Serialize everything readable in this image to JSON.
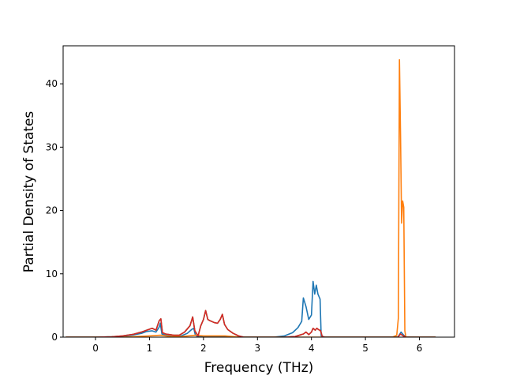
{
  "chart_data": {
    "type": "line",
    "title": "",
    "xlabel": "Frequency (THz)",
    "ylabel": "Partial Density of States",
    "xlim": [
      -0.6,
      6.65
    ],
    "ylim": [
      0,
      46
    ],
    "xticks": [
      0,
      1,
      2,
      3,
      4,
      5,
      6
    ],
    "yticks": [
      0,
      10,
      20,
      30,
      40
    ],
    "grid": false,
    "legend": "none",
    "series": [
      {
        "color": "#1f77b4",
        "points": [
          [
            -0.55,
            0
          ],
          [
            0.0,
            0.0
          ],
          [
            0.3,
            0.05
          ],
          [
            0.5,
            0.15
          ],
          [
            0.7,
            0.35
          ],
          [
            0.85,
            0.6
          ],
          [
            0.95,
            0.9
          ],
          [
            1.05,
            1.0
          ],
          [
            1.12,
            0.8
          ],
          [
            1.18,
            1.6
          ],
          [
            1.2,
            2.2
          ],
          [
            1.23,
            0.5
          ],
          [
            1.3,
            0.3
          ],
          [
            1.4,
            0.15
          ],
          [
            1.5,
            0.05
          ],
          [
            1.6,
            0.25
          ],
          [
            1.7,
            0.6
          ],
          [
            1.78,
            1.2
          ],
          [
            1.82,
            1.4
          ],
          [
            1.85,
            0.3
          ],
          [
            1.9,
            0.05
          ],
          [
            2.0,
            0.1
          ],
          [
            2.2,
            0.1
          ],
          [
            2.5,
            0.05
          ],
          [
            2.7,
            0.0
          ],
          [
            3.3,
            0.0
          ],
          [
            3.5,
            0.2
          ],
          [
            3.65,
            0.7
          ],
          [
            3.75,
            1.5
          ],
          [
            3.82,
            2.5
          ],
          [
            3.85,
            6.2
          ],
          [
            3.9,
            4.8
          ],
          [
            3.95,
            2.8
          ],
          [
            4.0,
            3.5
          ],
          [
            4.03,
            8.8
          ],
          [
            4.06,
            6.8
          ],
          [
            4.09,
            8.2
          ],
          [
            4.12,
            6.8
          ],
          [
            4.16,
            6.0
          ],
          [
            4.18,
            0.2
          ],
          [
            4.25,
            0.0
          ],
          [
            5.6,
            0.0
          ],
          [
            5.63,
            0.4
          ],
          [
            5.66,
            0.8
          ],
          [
            5.7,
            0.4
          ],
          [
            5.75,
            0.0
          ],
          [
            6.3,
            0.0
          ]
        ]
      },
      {
        "color": "#ff7f0e",
        "points": [
          [
            -0.55,
            0
          ],
          [
            0.5,
            0.0
          ],
          [
            1.0,
            0.2
          ],
          [
            1.2,
            0.3
          ],
          [
            1.4,
            0.1
          ],
          [
            1.6,
            0.1
          ],
          [
            1.85,
            0.3
          ],
          [
            2.0,
            0.2
          ],
          [
            2.4,
            0.2
          ],
          [
            2.6,
            0.05
          ],
          [
            2.8,
            0.0
          ],
          [
            5.5,
            0.0
          ],
          [
            5.58,
            0.3
          ],
          [
            5.61,
            3.0
          ],
          [
            5.63,
            43.8
          ],
          [
            5.65,
            32.0
          ],
          [
            5.67,
            18.0
          ],
          [
            5.69,
            21.5
          ],
          [
            5.71,
            20.5
          ],
          [
            5.73,
            1.0
          ],
          [
            5.75,
            0.0
          ],
          [
            6.3,
            0.0
          ]
        ]
      },
      {
        "color": "#2ca02c",
        "points": [
          [
            -0.55,
            0
          ],
          [
            0.0,
            0.0
          ],
          [
            0.3,
            0.05
          ],
          [
            0.5,
            0.2
          ],
          [
            0.7,
            0.45
          ],
          [
            0.85,
            0.8
          ],
          [
            0.95,
            1.1
          ],
          [
            1.05,
            1.4
          ],
          [
            1.12,
            1.1
          ],
          [
            1.18,
            2.6
          ],
          [
            1.21,
            2.9
          ],
          [
            1.24,
            0.7
          ],
          [
            1.3,
            0.5
          ],
          [
            1.45,
            0.3
          ],
          [
            1.55,
            0.3
          ],
          [
            1.65,
            0.8
          ],
          [
            1.75,
            1.8
          ],
          [
            1.8,
            3.2
          ],
          [
            1.84,
            1.0
          ],
          [
            1.9,
            0.2
          ],
          [
            1.95,
            1.8
          ],
          [
            2.0,
            2.8
          ],
          [
            2.04,
            4.2
          ],
          [
            2.08,
            2.8
          ],
          [
            2.12,
            2.6
          ],
          [
            2.2,
            2.3
          ],
          [
            2.26,
            2.2
          ],
          [
            2.31,
            2.8
          ],
          [
            2.35,
            3.6
          ],
          [
            2.39,
            2.0
          ],
          [
            2.45,
            1.2
          ],
          [
            2.55,
            0.6
          ],
          [
            2.65,
            0.2
          ],
          [
            2.75,
            0.0
          ],
          [
            3.5,
            0.0
          ],
          [
            3.7,
            0.1
          ],
          [
            3.85,
            0.5
          ],
          [
            3.9,
            0.8
          ],
          [
            3.95,
            0.4
          ],
          [
            4.0,
            0.8
          ],
          [
            4.03,
            1.4
          ],
          [
            4.07,
            1.1
          ],
          [
            4.1,
            1.4
          ],
          [
            4.13,
            1.2
          ],
          [
            4.17,
            1.0
          ],
          [
            4.2,
            0.1
          ],
          [
            4.25,
            0.0
          ],
          [
            5.6,
            0.0
          ],
          [
            5.65,
            0.5
          ],
          [
            5.7,
            0.2
          ],
          [
            5.75,
            0.0
          ],
          [
            6.3,
            0.0
          ]
        ]
      },
      {
        "color": "#d62728",
        "points": [
          [
            -0.55,
            0
          ],
          [
            0.0,
            0.0
          ],
          [
            0.3,
            0.05
          ],
          [
            0.5,
            0.2
          ],
          [
            0.7,
            0.45
          ],
          [
            0.85,
            0.8
          ],
          [
            0.95,
            1.1
          ],
          [
            1.05,
            1.4
          ],
          [
            1.12,
            1.1
          ],
          [
            1.18,
            2.6
          ],
          [
            1.21,
            2.9
          ],
          [
            1.24,
            0.7
          ],
          [
            1.3,
            0.5
          ],
          [
            1.45,
            0.3
          ],
          [
            1.55,
            0.3
          ],
          [
            1.65,
            0.8
          ],
          [
            1.75,
            1.8
          ],
          [
            1.8,
            3.2
          ],
          [
            1.84,
            1.0
          ],
          [
            1.9,
            0.2
          ],
          [
            1.95,
            1.8
          ],
          [
            2.0,
            2.8
          ],
          [
            2.04,
            4.2
          ],
          [
            2.08,
            2.8
          ],
          [
            2.12,
            2.6
          ],
          [
            2.2,
            2.3
          ],
          [
            2.26,
            2.2
          ],
          [
            2.31,
            2.8
          ],
          [
            2.35,
            3.6
          ],
          [
            2.39,
            2.0
          ],
          [
            2.45,
            1.2
          ],
          [
            2.55,
            0.6
          ],
          [
            2.65,
            0.2
          ],
          [
            2.75,
            0.0
          ],
          [
            3.5,
            0.0
          ],
          [
            3.7,
            0.1
          ],
          [
            3.85,
            0.5
          ],
          [
            3.9,
            0.8
          ],
          [
            3.95,
            0.4
          ],
          [
            4.0,
            0.8
          ],
          [
            4.03,
            1.4
          ],
          [
            4.07,
            1.1
          ],
          [
            4.1,
            1.4
          ],
          [
            4.13,
            1.2
          ],
          [
            4.17,
            1.0
          ],
          [
            4.2,
            0.1
          ],
          [
            4.25,
            0.0
          ],
          [
            5.6,
            0.0
          ],
          [
            5.65,
            0.5
          ],
          [
            5.7,
            0.2
          ],
          [
            5.75,
            0.0
          ],
          [
            6.3,
            0.0
          ]
        ]
      }
    ]
  }
}
